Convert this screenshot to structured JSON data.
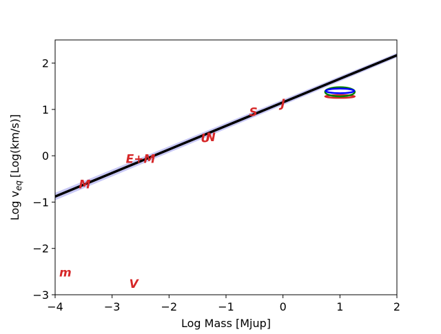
{
  "chart_data": {
    "type": "scatter",
    "title": "",
    "xlabel": "Log Mass [Mjup]",
    "ylabel": "Log v",
    "ylabel_subscript": "eq",
    "ylabel_units": "[Log(km/s)]",
    "xlim": [
      -4,
      2
    ],
    "ylim": [
      -3,
      2.5
    ],
    "xticks": [
      -4,
      -3,
      -2,
      -1,
      0,
      1,
      2
    ],
    "xtick_labels": [
      "−4",
      "−3",
      "−2",
      "−1",
      "0",
      "1",
      "2"
    ],
    "yticks": [
      -3,
      -2,
      -1,
      0,
      1,
      2
    ],
    "ytick_labels": [
      "−3",
      "−2",
      "−1",
      "0",
      "1",
      "2"
    ],
    "grid": false,
    "fit_line": {
      "color": "#000000",
      "points": [
        [
          -4,
          -0.88
        ],
        [
          2,
          2.17
        ]
      ]
    },
    "fit_band": {
      "color": "#c8c8f5",
      "upper": [
        [
          -4,
          -0.8
        ],
        [
          2,
          2.22
        ]
      ],
      "lower": [
        [
          -4,
          -0.96
        ],
        [
          2,
          2.12
        ]
      ]
    },
    "points": [
      {
        "label": "m",
        "x": -3.82,
        "y": -2.53,
        "color": "#d62728"
      },
      {
        "label": "V",
        "x": -2.62,
        "y": -2.78,
        "color": "#d62728"
      },
      {
        "label": "M",
        "x": -3.48,
        "y": -0.63,
        "color": "#d62728"
      },
      {
        "label": "E+M",
        "x": -2.5,
        "y": -0.08,
        "color": "#d62728"
      },
      {
        "label": "U",
        "x": -1.36,
        "y": 0.37,
        "color": "#d62728"
      },
      {
        "label": "N",
        "x": -1.27,
        "y": 0.39,
        "color": "#d62728"
      },
      {
        "label": "S",
        "x": -0.52,
        "y": 0.93,
        "color": "#d62728"
      },
      {
        "label": "J",
        "x": 0.0,
        "y": 1.12,
        "color": "#d62728"
      }
    ],
    "ellipses": [
      {
        "color": "#d62728",
        "cx": 1.0,
        "cy": 1.28,
        "rx": 0.26,
        "ry": 0.03
      },
      {
        "color": "#008000",
        "cx": 1.0,
        "cy": 1.38,
        "rx": 0.26,
        "ry": 0.1
      },
      {
        "color": "#0000ff",
        "cx": 1.0,
        "cy": 1.4,
        "rx": 0.25,
        "ry": 0.05
      }
    ]
  }
}
